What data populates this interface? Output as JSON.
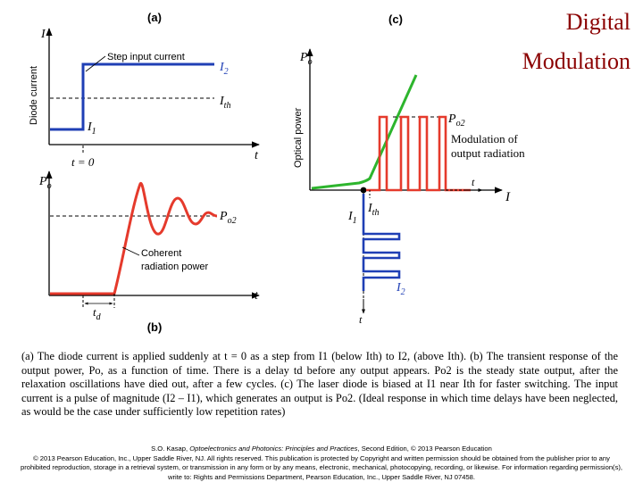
{
  "slide_title": [
    "Digital",
    "Modulation"
  ],
  "panel_labels": {
    "a": "(a)",
    "b": "(b)",
    "c": "(c)"
  },
  "panel_a": {
    "ylabel": "Diode current",
    "y_axis_symbol": "I",
    "x_axis_symbol": "t",
    "curve_label": "Step input current",
    "level_high": "I2",
    "level_threshold": "Ith",
    "level_low": "I1",
    "time_zero": "t = 0"
  },
  "panel_b": {
    "y_axis_symbol": "Po",
    "x_axis_symbol": "t",
    "steady_level": "Po2",
    "curve_label": [
      "Coherent",
      "radiation power"
    ],
    "delay_symbol": "td"
  },
  "panel_c": {
    "ylabel": "Optical power",
    "y_axis_symbol": "Po",
    "x_axis_symbol": "I",
    "pulse_level": "Po2",
    "output_label": [
      "Modulation of",
      "output radiation"
    ],
    "bias_current": "I1",
    "threshold_current": "Ith",
    "pulse_current": "I2",
    "time_axis": "t"
  },
  "colors": {
    "title": "#8b0000",
    "input_current": "#1f3fb5",
    "optical_output": "#e53a2c",
    "li_curve": "#2db52d"
  },
  "caption": "(a) The diode current is applied suddenly at t = 0 as a step from I1 (below Ith) to I2, (above Ith). (b) The transient response of the output power, Po, as a function of time. There is a delay td before any output appears. Po2 is the steady state output, after the relaxation oscillations have died out, after a few cycles. (c) The laser diode is biased at I1 near Ith for faster switching. The input current is a pulse of magnitude (I2 – I1), which generates an output is Po2. (Ideal response in which time delays have been neglected, as would be the case under sufficiently low repetition rates)",
  "credit": {
    "book_author": "S.O. Kasap,",
    "book_title": "Optoelectronics and Photonics: Principles and Practices",
    "book_rest": ", Second Edition, © 2013 Pearson Education",
    "copyright": "© 2013 Pearson Education, Inc., Upper Saddle River, NJ. All rights reserved. This publication is protected by Copyright and written permission should be obtained from the publisher prior to any prohibited reproduction, storage in a retrieval system, or transmission in any form or by any means, electronic, mechanical, photocopying, recording, or likewise. For information regarding permission(s), write to: Rights and Permissions Department, Pearson Education, Inc., Upper Saddle River, NJ 07458."
  }
}
